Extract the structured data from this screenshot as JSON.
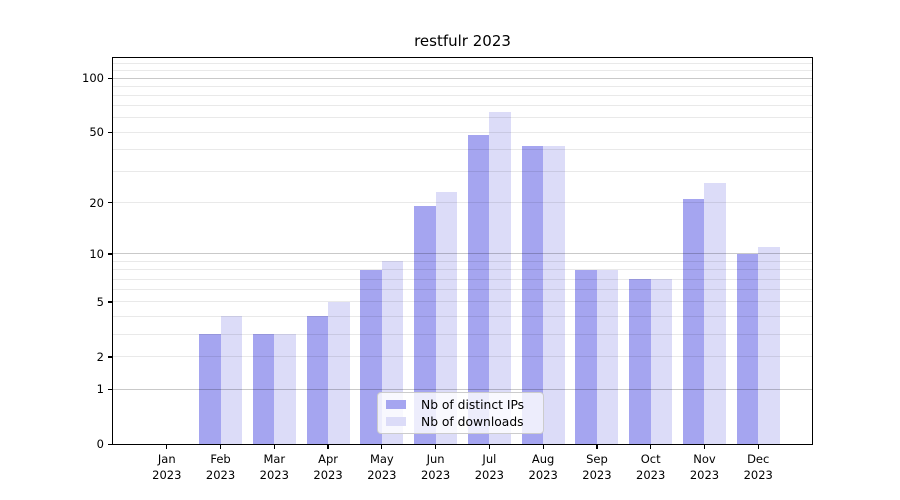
{
  "figure": {
    "title": "restfulr 2023"
  },
  "chart_data": {
    "type": "bar",
    "title": "restfulr 2023",
    "categories": [
      "Jan 2023",
      "Feb 2023",
      "Mar 2023",
      "Apr 2023",
      "May 2023",
      "Jun 2023",
      "Jul 2023",
      "Aug 2023",
      "Sep 2023",
      "Oct 2023",
      "Nov 2023",
      "Dec 2023"
    ],
    "series": [
      {
        "name": "Nb of distinct IPs",
        "color": "#a5a5f0",
        "values": [
          0,
          3,
          3,
          4,
          8,
          19,
          48,
          42,
          8,
          7,
          21,
          10
        ]
      },
      {
        "name": "Nb of downloads",
        "color": "#dcdcf8",
        "values": [
          0,
          4,
          3,
          5,
          9,
          23,
          65,
          42,
          8,
          7,
          26,
          11
        ]
      }
    ],
    "xlabel": "",
    "ylabel": "",
    "yscale": "log10(1+x)",
    "ylim": [
      0,
      129
    ],
    "y_axis_ticks": [
      0,
      1,
      2,
      5,
      10,
      20,
      50,
      100
    ],
    "y_decade_gridlines": [
      1,
      10,
      100
    ],
    "y_minor_gridlines": [
      2,
      3,
      4,
      5,
      6,
      7,
      8,
      9,
      20,
      30,
      40,
      50,
      60,
      70,
      80,
      90,
      110,
      120
    ],
    "grid": true,
    "legend_position": "lower center",
    "colors": {
      "background": "#ffffff",
      "axis": "#000000",
      "decade_gridline": "#c9c9c9",
      "minor_gridline": "#e9e9e9"
    }
  }
}
